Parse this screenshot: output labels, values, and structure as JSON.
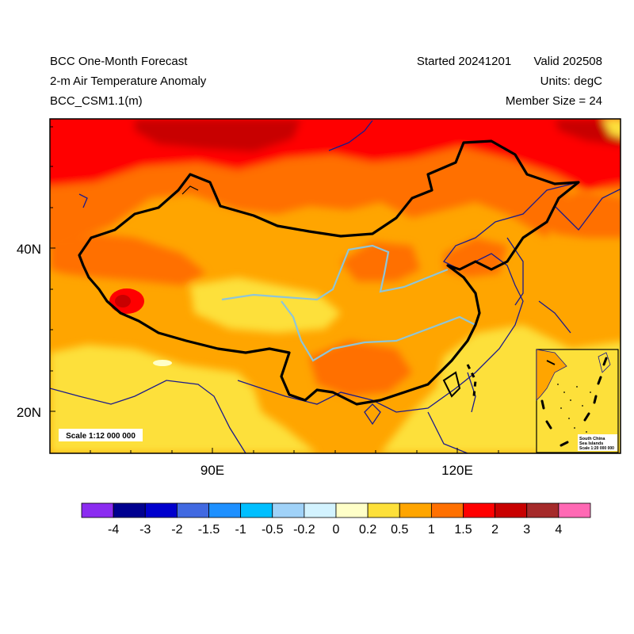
{
  "header": {
    "line1_left": "BCC One-Month Forecast",
    "line2_left": "2-m Air Temperature Anomaly",
    "line3_left": "BCC_CSM1.1(m)",
    "started": "Started 20241201",
    "valid": "Valid 202508",
    "units": "Units: degC",
    "member_size": "Member Size = 24"
  },
  "map": {
    "scale_label": "Scale 1:12 000 000",
    "inset_title_1": "South China",
    "inset_title_2": "Sea Islands",
    "inset_scale": "Scale 1:20 000 000",
    "lat_labels": [
      "40N",
      "20N"
    ],
    "lon_labels": [
      "90E",
      "120E"
    ],
    "lon_range": [
      70,
      140
    ],
    "lat_range": [
      15,
      55
    ]
  },
  "colorbar": {
    "colors": [
      "#8b2cf0",
      "#00008f",
      "#0000cd",
      "#4169e1",
      "#1e90ff",
      "#00bfff",
      "#a0d2f8",
      "#d3f3ff",
      "#ffffc8",
      "#fde03a",
      "#ffa500",
      "#ff7000",
      "#ff0000",
      "#c80000",
      "#a52a2a",
      "#ff69b4"
    ],
    "labels": [
      "-4",
      "-3",
      "-2",
      "-1.5",
      "-1",
      "-0.5",
      "-0.2",
      "0",
      "0.2",
      "0.5",
      "1",
      "1.5",
      "2",
      "3",
      "4"
    ]
  },
  "colors": {
    "coast": "#1a1a8c",
    "river": "#8ec5d8",
    "border": "#000000"
  }
}
